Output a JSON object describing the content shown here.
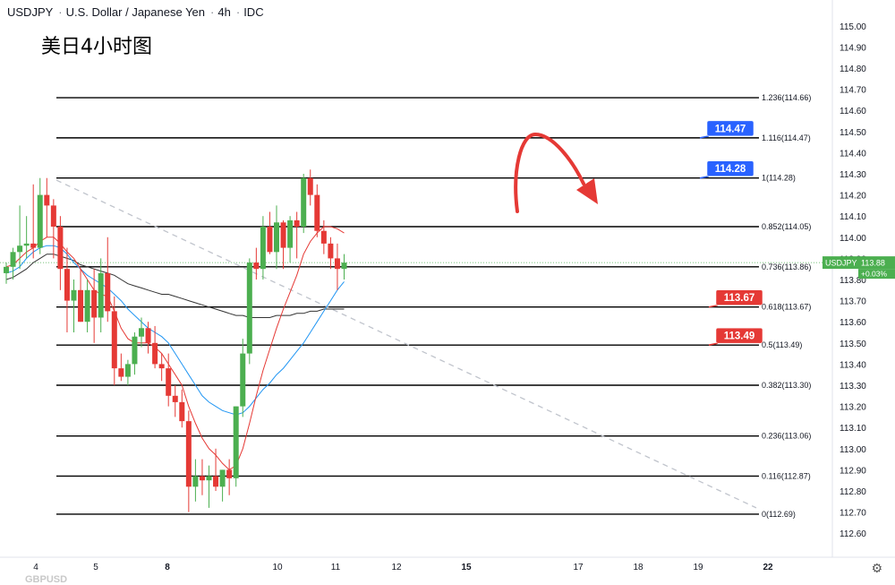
{
  "header": {
    "symbol": "USDJPY",
    "name": "U.S. Dollar / Japanese Yen",
    "interval": "4h",
    "source": "IDC"
  },
  "subtitle": "美日4小时图",
  "watermark": "GBPUSD",
  "price_tag": {
    "symbol": "USDJPY",
    "price": "113.88",
    "change": "+0.03%",
    "color": "#4caf50"
  },
  "chart_data": {
    "type": "candlestick",
    "ylim": [
      112.55,
      115.05
    ],
    "y_ticks": [
      "115.00",
      "114.90",
      "114.80",
      "114.70",
      "114.60",
      "114.50",
      "114.40",
      "114.30",
      "114.20",
      "114.10",
      "114.00",
      "113.90",
      "113.80",
      "113.70",
      "113.60",
      "113.50",
      "113.40",
      "113.30",
      "113.20",
      "113.10",
      "113.00",
      "112.90",
      "112.80",
      "112.70",
      "112.60"
    ],
    "x_ticks": [
      "4",
      "5",
      "8",
      "10",
      "11",
      "12",
      "15",
      "17",
      "18",
      "19",
      "22"
    ],
    "x_tick_bold": [
      "8",
      "15",
      "22"
    ],
    "candles": [
      {
        "o": 113.83,
        "h": 113.88,
        "l": 113.78,
        "c": 113.86
      },
      {
        "o": 113.86,
        "h": 113.95,
        "l": 113.8,
        "c": 113.93
      },
      {
        "o": 113.93,
        "h": 114.15,
        "l": 113.85,
        "c": 113.96
      },
      {
        "o": 113.96,
        "h": 114.1,
        "l": 113.9,
        "c": 113.97
      },
      {
        "o": 113.97,
        "h": 114.25,
        "l": 113.9,
        "c": 113.95
      },
      {
        "o": 113.95,
        "h": 114.28,
        "l": 113.92,
        "c": 114.2
      },
      {
        "o": 114.2,
        "h": 114.28,
        "l": 114.0,
        "c": 114.15
      },
      {
        "o": 114.15,
        "h": 114.18,
        "l": 113.9,
        "c": 114.05
      },
      {
        "o": 114.05,
        "h": 114.1,
        "l": 113.75,
        "c": 113.85
      },
      {
        "o": 113.85,
        "h": 113.95,
        "l": 113.55,
        "c": 113.7
      },
      {
        "o": 113.7,
        "h": 113.8,
        "l": 113.55,
        "c": 113.75
      },
      {
        "o": 113.75,
        "h": 113.85,
        "l": 113.6,
        "c": 113.6
      },
      {
        "o": 113.6,
        "h": 113.8,
        "l": 113.55,
        "c": 113.75
      },
      {
        "o": 113.75,
        "h": 113.85,
        "l": 113.5,
        "c": 113.62
      },
      {
        "o": 113.62,
        "h": 113.9,
        "l": 113.55,
        "c": 113.83
      },
      {
        "o": 113.83,
        "h": 114.0,
        "l": 113.6,
        "c": 113.65
      },
      {
        "o": 113.65,
        "h": 113.72,
        "l": 113.3,
        "c": 113.38
      },
      {
        "o": 113.38,
        "h": 113.45,
        "l": 113.32,
        "c": 113.34
      },
      {
        "o": 113.34,
        "h": 113.42,
        "l": 113.3,
        "c": 113.4
      },
      {
        "o": 113.4,
        "h": 113.55,
        "l": 113.35,
        "c": 113.53
      },
      {
        "o": 113.53,
        "h": 113.62,
        "l": 113.48,
        "c": 113.57
      },
      {
        "o": 113.57,
        "h": 113.6,
        "l": 113.45,
        "c": 113.5
      },
      {
        "o": 113.5,
        "h": 113.58,
        "l": 113.38,
        "c": 113.4
      },
      {
        "o": 113.4,
        "h": 113.45,
        "l": 113.32,
        "c": 113.38
      },
      {
        "o": 113.38,
        "h": 113.45,
        "l": 113.2,
        "c": 113.25
      },
      {
        "o": 113.25,
        "h": 113.3,
        "l": 113.15,
        "c": 113.22
      },
      {
        "o": 113.22,
        "h": 113.28,
        "l": 113.1,
        "c": 113.13
      },
      {
        "o": 113.13,
        "h": 113.18,
        "l": 112.7,
        "c": 112.82
      },
      {
        "o": 112.82,
        "h": 112.95,
        "l": 112.75,
        "c": 112.87
      },
      {
        "o": 112.87,
        "h": 112.95,
        "l": 112.78,
        "c": 112.85
      },
      {
        "o": 112.85,
        "h": 112.92,
        "l": 112.72,
        "c": 112.87
      },
      {
        "o": 112.87,
        "h": 113.0,
        "l": 112.8,
        "c": 112.82
      },
      {
        "o": 112.82,
        "h": 112.9,
        "l": 112.75,
        "c": 112.9
      },
      {
        "o": 112.9,
        "h": 112.95,
        "l": 112.78,
        "c": 112.86
      },
      {
        "o": 112.86,
        "h": 113.2,
        "l": 112.82,
        "c": 113.2
      },
      {
        "o": 113.2,
        "h": 113.52,
        "l": 113.15,
        "c": 113.45
      },
      {
        "o": 113.45,
        "h": 113.9,
        "l": 113.4,
        "c": 113.88
      },
      {
        "o": 113.88,
        "h": 113.95,
        "l": 113.8,
        "c": 113.85
      },
      {
        "o": 113.85,
        "h": 114.1,
        "l": 113.8,
        "c": 114.05
      },
      {
        "o": 114.05,
        "h": 114.12,
        "l": 113.92,
        "c": 113.93
      },
      {
        "o": 113.93,
        "h": 114.15,
        "l": 113.85,
        "c": 114.07
      },
      {
        "o": 114.07,
        "h": 114.08,
        "l": 113.85,
        "c": 113.95
      },
      {
        "o": 113.95,
        "h": 114.1,
        "l": 113.88,
        "c": 114.08
      },
      {
        "o": 114.08,
        "h": 114.12,
        "l": 113.9,
        "c": 114.05
      },
      {
        "o": 114.05,
        "h": 114.3,
        "l": 114.02,
        "c": 114.28
      },
      {
        "o": 114.28,
        "h": 114.32,
        "l": 114.15,
        "c": 114.2
      },
      {
        "o": 114.2,
        "h": 114.25,
        "l": 114.0,
        "c": 114.03
      },
      {
        "o": 114.03,
        "h": 114.08,
        "l": 113.92,
        "c": 113.97
      },
      {
        "o": 113.97,
        "h": 114.0,
        "l": 113.85,
        "c": 113.9
      },
      {
        "o": 113.9,
        "h": 113.97,
        "l": 113.75,
        "c": 113.85
      },
      {
        "o": 113.85,
        "h": 113.92,
        "l": 113.8,
        "c": 113.88
      }
    ],
    "ma_fast": [
      113.86,
      113.87,
      113.9,
      113.93,
      113.95,
      113.98,
      114.0,
      114.0,
      113.97,
      113.93,
      113.9,
      113.85,
      113.8,
      113.75,
      113.73,
      113.72,
      113.65,
      113.57,
      113.52,
      113.5,
      113.5,
      113.5,
      113.48,
      113.45,
      113.4,
      113.35,
      113.3,
      113.2,
      113.12,
      113.05,
      113.0,
      112.97,
      112.93,
      112.9,
      112.92,
      113.0,
      113.12,
      113.25,
      113.37,
      113.47,
      113.57,
      113.66,
      113.74,
      113.82,
      113.92,
      113.98,
      114.02,
      114.05,
      114.05,
      114.04,
      114.02
    ],
    "ma_mid": [
      113.83,
      113.84,
      113.86,
      113.9,
      113.93,
      113.95,
      113.96,
      113.96,
      113.95,
      113.92,
      113.88,
      113.85,
      113.82,
      113.8,
      113.78,
      113.76,
      113.73,
      113.7,
      113.66,
      113.63,
      113.6,
      113.57,
      113.55,
      113.53,
      113.5,
      113.45,
      113.4,
      113.35,
      113.3,
      113.25,
      113.22,
      113.2,
      113.18,
      113.17,
      113.16,
      113.17,
      113.2,
      113.24,
      113.28,
      113.31,
      113.35,
      113.38,
      113.42,
      113.46,
      113.5,
      113.55,
      113.6,
      113.65,
      113.7,
      113.75,
      113.79
    ],
    "ma_slow": [
      113.8,
      113.81,
      113.83,
      113.85,
      113.88,
      113.9,
      113.92,
      113.92,
      113.91,
      113.9,
      113.89,
      113.87,
      113.86,
      113.85,
      113.84,
      113.83,
      113.82,
      113.8,
      113.78,
      113.77,
      113.76,
      113.75,
      113.74,
      113.73,
      113.73,
      113.72,
      113.71,
      113.7,
      113.69,
      113.68,
      113.67,
      113.66,
      113.65,
      113.64,
      113.63,
      113.63,
      113.62,
      113.62,
      113.62,
      113.62,
      113.63,
      113.63,
      113.63,
      113.64,
      113.64,
      113.65,
      113.65,
      113.66,
      113.66,
      113.66,
      113.66
    ],
    "fib_levels": [
      {
        "label": "1.236(114.66)",
        "value": 114.66
      },
      {
        "label": "1.116(114.47)",
        "value": 114.47
      },
      {
        "label": "1(114.28)",
        "value": 114.28
      },
      {
        "label": "0.852(114.05)",
        "value": 114.05
      },
      {
        "label": "0.736(113.86)",
        "value": 113.86
      },
      {
        "label": "0.618(113.67)",
        "value": 113.67
      },
      {
        "label": "0.5(113.49)",
        "value": 113.49
      },
      {
        "label": "0.382(113.30)",
        "value": 113.3
      },
      {
        "label": "0.236(113.06)",
        "value": 113.06
      },
      {
        "label": "0.116(112.87)",
        "value": 112.87
      },
      {
        "label": "0(112.69)",
        "value": 112.69
      }
    ],
    "callouts": [
      {
        "text": "114.47",
        "value": 114.47,
        "color": "#2962ff"
      },
      {
        "text": "114.28",
        "value": 114.28,
        "color": "#2962ff"
      },
      {
        "text": "113.67",
        "value": 113.67,
        "color": "#e53935"
      },
      {
        "text": "113.49",
        "value": 113.49,
        "color": "#e53935"
      }
    ],
    "trendline": {
      "start": [
        0,
        114.27
      ],
      "end": [
        115,
        112.72
      ]
    },
    "colors": {
      "up": "#4caf50",
      "down": "#e53935",
      "ma_fast": "#e53935",
      "ma_mid": "#2196f3",
      "ma_slow": "#333333",
      "fib": "#000000",
      "trend": "#c0c4cc",
      "arrow": "#e53935"
    }
  }
}
